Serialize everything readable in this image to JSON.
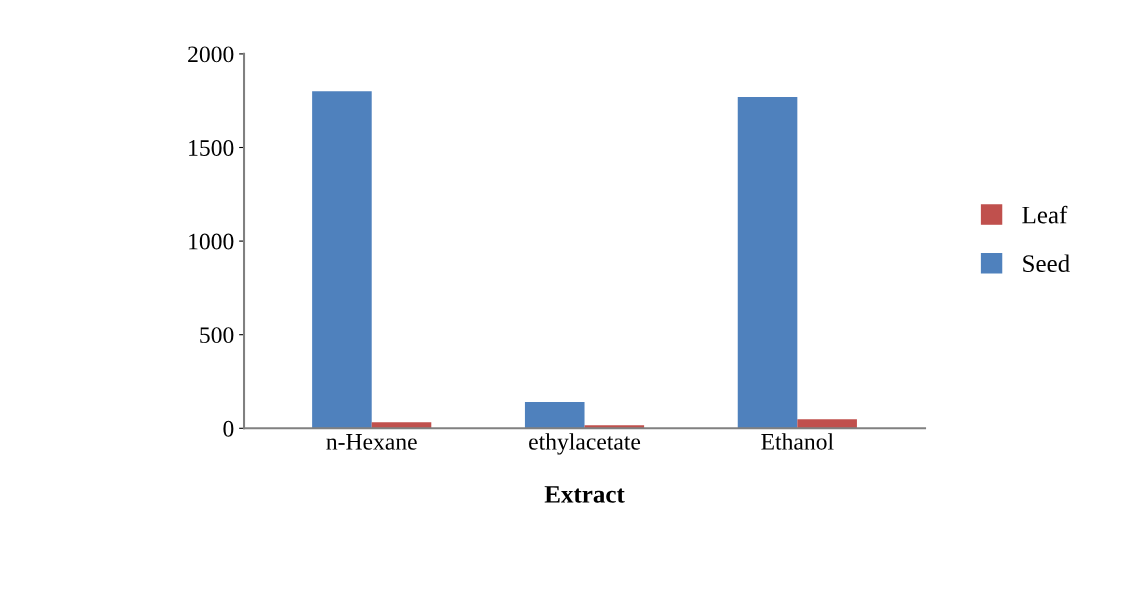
{
  "chart_data": {
    "type": "bar",
    "xlabel": "Extract",
    "categories": [
      "n-Hexane",
      "ethylacetate",
      "Ethanol"
    ],
    "series": [
      {
        "name": "Seed",
        "color": "#4f81bd",
        "values": [
          1800,
          140,
          1770
        ]
      },
      {
        "name": "Leaf",
        "color": "#c0504d",
        "values": [
          32,
          16,
          48
        ]
      }
    ],
    "ylim": [
      0,
      2000
    ],
    "yticks": [
      0,
      500,
      1000,
      1500,
      2000
    ],
    "grid": false,
    "legend": "right"
  }
}
